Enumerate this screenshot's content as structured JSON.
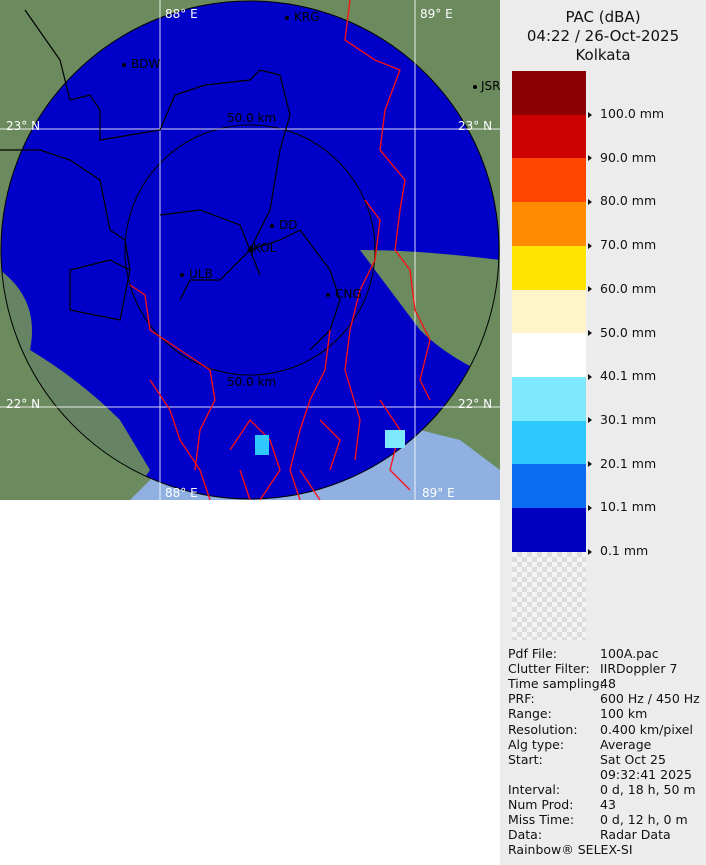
{
  "header": {
    "product": "PAC (dBA)",
    "datetime": "04:22 / 26-Oct-2025",
    "site": "Kolkata"
  },
  "legend": [
    {
      "label": "100.0 mm",
      "color": "#8b0000"
    },
    {
      "label": "90.0 mm",
      "color": "#cc0000"
    },
    {
      "label": "80.0 mm",
      "color": "#ff4500"
    },
    {
      "label": "70.0 mm",
      "color": "#ff8c00"
    },
    {
      "label": "60.0 mm",
      "color": "#ffe600"
    },
    {
      "label": "50.0 mm",
      "color": "#fff5c8"
    },
    {
      "label": "40.1 mm",
      "color": "#ffffff"
    },
    {
      "label": "30.1 mm",
      "color": "#7ee8ff"
    },
    {
      "label": "20.1 mm",
      "color": "#2ec8ff"
    },
    {
      "label": "10.1 mm",
      "color": "#0a6cf0"
    },
    {
      "label": "0.1 mm",
      "color": "#0000c0"
    }
  ],
  "info": [
    {
      "k": "Pdf File:",
      "v": "100A.pac"
    },
    {
      "k": "Clutter Filter:",
      "v": "IIRDoppler 7"
    },
    {
      "k": "Time sampling:",
      "v": "48"
    },
    {
      "k": "PRF:",
      "v": "600 Hz / 450 Hz"
    },
    {
      "k": "Range:",
      "v": "100 km"
    },
    {
      "k": "Resolution:",
      "v": "0.400 km/pixel"
    },
    {
      "k": "Alg type:",
      "v": "Average"
    },
    {
      "k": "Start:",
      "v": "Sat Oct 25"
    },
    {
      "k": "",
      "v": "09:32:41 2025"
    },
    {
      "k": "Interval:",
      "v": "0 d, 18 h, 50 m"
    },
    {
      "k": "Num Prod:",
      "v": "43"
    },
    {
      "k": "Miss Time:",
      "v": "0 d, 12 h, 0 m"
    },
    {
      "k": "Data:",
      "v": "Radar Data"
    }
  ],
  "footer": "Rainbow® SELEX-SI",
  "map": {
    "lon_labels": [
      "88° E",
      "89° E"
    ],
    "lat_labels": [
      "23° N",
      "22° N"
    ],
    "range_label": "50.0 km",
    "cities": [
      "BDW",
      "KRG",
      "JSR",
      "DD",
      "KOL",
      "ULB",
      "CNG"
    ]
  }
}
